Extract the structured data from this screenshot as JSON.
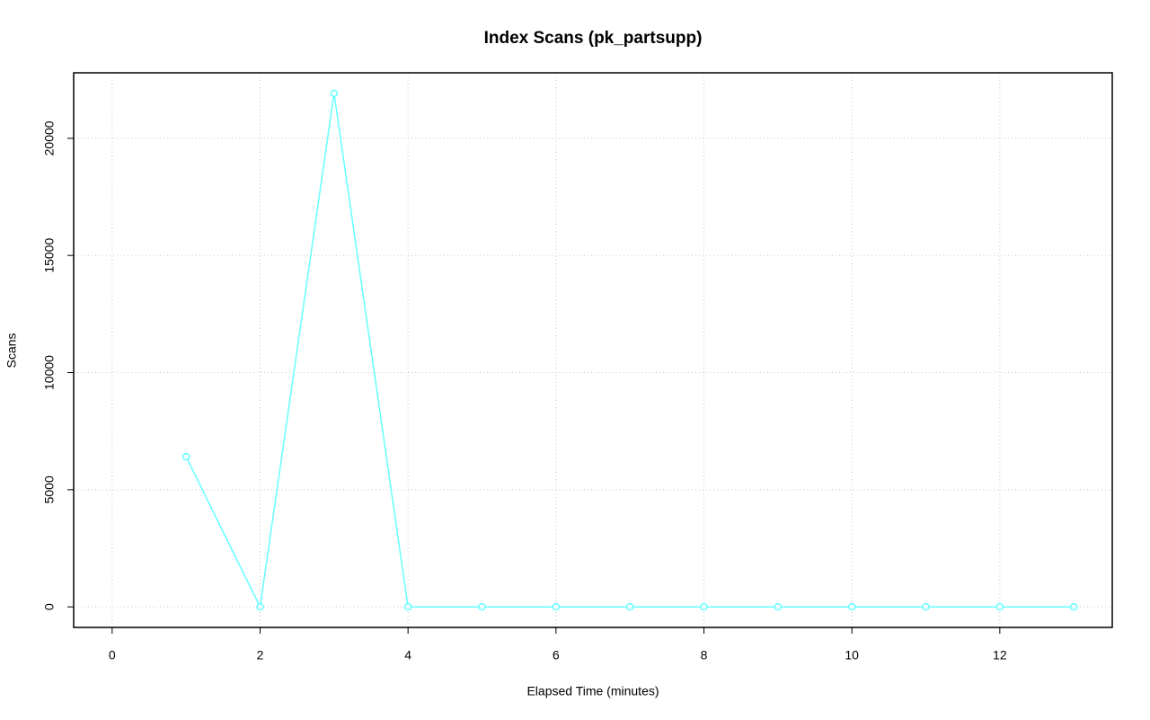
{
  "chart_data": {
    "type": "line",
    "title": "Index Scans (pk_partsupp)",
    "x_label": "Elapsed Time (minutes)",
    "y_label": "Scans",
    "x": [
      1,
      2,
      3,
      4,
      5,
      6,
      7,
      8,
      9,
      10,
      11,
      12,
      13
    ],
    "series": [
      {
        "name": "pk_partsupp",
        "color": "#66ffff",
        "values": [
          6410,
          0,
          21920,
          0,
          0,
          0,
          0,
          0,
          0,
          0,
          0,
          0,
          0
        ]
      }
    ],
    "xlim": [
      -0.52,
      13.52
    ],
    "xticks": [
      0,
      2,
      4,
      6,
      8,
      10,
      12
    ],
    "ylim": [
      -877,
      22797
    ],
    "yticks": [
      0,
      5000,
      10000,
      15000,
      20000
    ],
    "grid": true
  }
}
